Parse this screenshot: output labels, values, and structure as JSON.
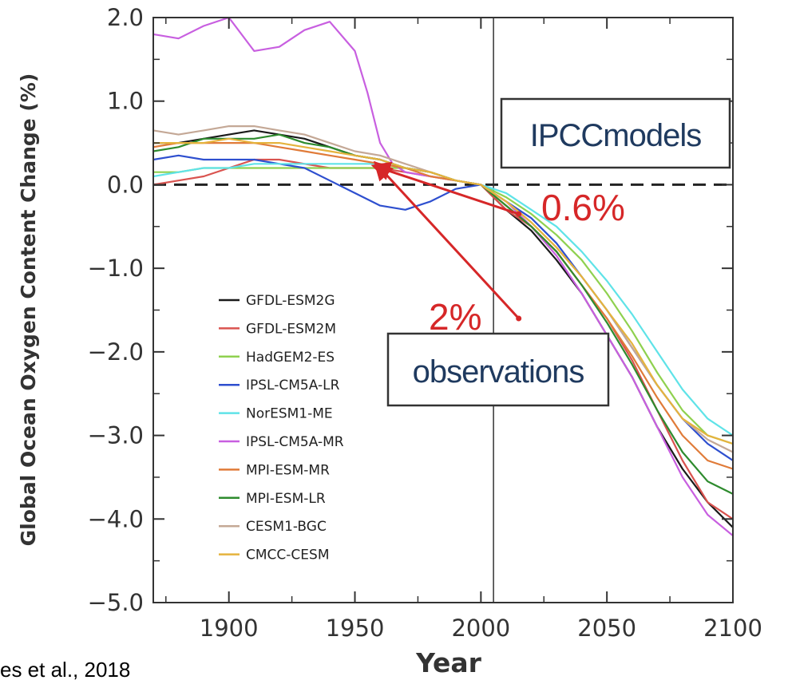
{
  "chart_data": {
    "type": "line",
    "xlabel": "Year",
    "ylabel": "Global Ocean Oxygen Content Change (%)",
    "xlim": [
      1870,
      2100
    ],
    "ylim": [
      -5.0,
      2.0
    ],
    "x_ticks": [
      1900,
      1950,
      2000,
      2050,
      2100
    ],
    "x_tick_labels": [
      "1900",
      "1950",
      "2000",
      "2050",
      "2100"
    ],
    "y_ticks": [
      2.0,
      1.0,
      0.0,
      -1.0,
      -2.0,
      -3.0,
      -4.0,
      -5.0
    ],
    "y_tick_labels": [
      "2.0",
      "1.0",
      "0.0",
      "−1.0",
      "−2.0",
      "−3.0",
      "−4.0",
      "−5.0"
    ],
    "reference_line_y": 0.0,
    "vertical_line_x": 2005,
    "legend_position": "bottom-left",
    "series": [
      {
        "name": "GFDL-ESM2G",
        "color": "#1a1a1a",
        "x": [
          1870,
          1880,
          1890,
          1900,
          1910,
          1920,
          1930,
          1940,
          1950,
          1960,
          1970,
          1980,
          1990,
          2000,
          2010,
          2020,
          2030,
          2040,
          2050,
          2060,
          2070,
          2080,
          2090,
          2100
        ],
        "y": [
          0.5,
          0.5,
          0.55,
          0.6,
          0.65,
          0.6,
          0.55,
          0.45,
          0.35,
          0.3,
          0.2,
          0.15,
          0.05,
          0.0,
          -0.3,
          -0.55,
          -0.9,
          -1.3,
          -1.8,
          -2.3,
          -2.9,
          -3.4,
          -3.8,
          -4.1
        ]
      },
      {
        "name": "GFDL-ESM2M",
        "color": "#d9534f",
        "x": [
          1870,
          1880,
          1890,
          1900,
          1910,
          1920,
          1930,
          1940,
          1950,
          1960,
          1970,
          1980,
          1990,
          2000,
          2010,
          2020,
          2030,
          2040,
          2050,
          2060,
          2070,
          2080,
          2090,
          2100
        ],
        "y": [
          0.0,
          0.05,
          0.1,
          0.2,
          0.3,
          0.3,
          0.25,
          0.2,
          0.2,
          0.2,
          0.15,
          0.1,
          0.05,
          0.0,
          -0.3,
          -0.5,
          -0.8,
          -1.2,
          -1.6,
          -2.1,
          -2.7,
          -3.3,
          -3.8,
          -4.0
        ]
      },
      {
        "name": "HadGEM2-ES",
        "color": "#8fd14f",
        "x": [
          1870,
          1880,
          1890,
          1900,
          1910,
          1920,
          1930,
          1940,
          1950,
          1960,
          1970,
          1980,
          1990,
          2000,
          2010,
          2020,
          2030,
          2040,
          2050,
          2060,
          2070,
          2080,
          2090,
          2100
        ],
        "y": [
          0.15,
          0.15,
          0.2,
          0.2,
          0.2,
          0.2,
          0.2,
          0.2,
          0.2,
          0.2,
          0.2,
          0.15,
          0.05,
          0.0,
          -0.15,
          -0.35,
          -0.6,
          -0.9,
          -1.3,
          -1.75,
          -2.25,
          -2.7,
          -3.0,
          -3.1
        ]
      },
      {
        "name": "IPSL-CM5A-LR",
        "color": "#2e4fcf",
        "x": [
          1870,
          1880,
          1890,
          1900,
          1910,
          1920,
          1930,
          1940,
          1950,
          1960,
          1970,
          1980,
          1990,
          2000,
          2010,
          2020,
          2030,
          2040,
          2050,
          2060,
          2070,
          2080,
          2090,
          2100
        ],
        "y": [
          0.3,
          0.35,
          0.3,
          0.3,
          0.3,
          0.25,
          0.2,
          0.05,
          -0.1,
          -0.25,
          -0.3,
          -0.2,
          -0.05,
          0.0,
          -0.2,
          -0.4,
          -0.7,
          -1.1,
          -1.5,
          -1.95,
          -2.4,
          -2.8,
          -3.1,
          -3.3
        ]
      },
      {
        "name": "NorESM1-ME",
        "color": "#5fe3e8",
        "x": [
          1870,
          1880,
          1890,
          1900,
          1910,
          1920,
          1930,
          1940,
          1950,
          1960,
          1970,
          1980,
          1990,
          2000,
          2010,
          2020,
          2030,
          2040,
          2050,
          2060,
          2070,
          2080,
          2090,
          2100
        ],
        "y": [
          0.1,
          0.15,
          0.2,
          0.2,
          0.25,
          0.25,
          0.25,
          0.25,
          0.25,
          0.25,
          0.2,
          0.15,
          0.05,
          0.0,
          -0.1,
          -0.3,
          -0.5,
          -0.8,
          -1.15,
          -1.55,
          -2.0,
          -2.45,
          -2.8,
          -3.0
        ]
      },
      {
        "name": "IPSL-CM5A-MR",
        "color": "#c85fe0",
        "x": [
          1870,
          1880,
          1890,
          1900,
          1910,
          1920,
          1930,
          1940,
          1950,
          1955,
          1960,
          1965,
          1970,
          1980,
          1990,
          2000,
          2010,
          2020,
          2030,
          2040,
          2050,
          2060,
          2070,
          2080,
          2090,
          2100
        ],
        "y": [
          1.8,
          1.75,
          1.9,
          2.0,
          1.6,
          1.65,
          1.85,
          1.95,
          1.6,
          1.1,
          0.5,
          0.25,
          0.15,
          0.1,
          0.05,
          0.0,
          -0.2,
          -0.5,
          -0.85,
          -1.3,
          -1.8,
          -2.3,
          -2.9,
          -3.5,
          -3.95,
          -4.2
        ]
      },
      {
        "name": "MPI-ESM-MR",
        "color": "#e07b39",
        "x": [
          1870,
          1880,
          1890,
          1900,
          1910,
          1920,
          1930,
          1940,
          1950,
          1960,
          1970,
          1980,
          1990,
          2000,
          2010,
          2020,
          2030,
          2040,
          2050,
          2060,
          2070,
          2080,
          2090,
          2100
        ],
        "y": [
          0.45,
          0.5,
          0.5,
          0.5,
          0.5,
          0.45,
          0.4,
          0.35,
          0.3,
          0.25,
          0.2,
          0.1,
          0.05,
          0.0,
          -0.25,
          -0.5,
          -0.8,
          -1.2,
          -1.6,
          -2.05,
          -2.55,
          -3.0,
          -3.3,
          -3.4
        ]
      },
      {
        "name": "MPI-ESM-LR",
        "color": "#2e8b2e",
        "x": [
          1870,
          1880,
          1890,
          1900,
          1910,
          1920,
          1930,
          1940,
          1950,
          1960,
          1970,
          1980,
          1990,
          2000,
          2010,
          2020,
          2030,
          2040,
          2050,
          2060,
          2070,
          2080,
          2090,
          2100
        ],
        "y": [
          0.4,
          0.45,
          0.55,
          0.55,
          0.55,
          0.6,
          0.5,
          0.45,
          0.35,
          0.3,
          0.2,
          0.15,
          0.05,
          0.0,
          -0.25,
          -0.5,
          -0.8,
          -1.2,
          -1.65,
          -2.15,
          -2.7,
          -3.2,
          -3.55,
          -3.7
        ]
      },
      {
        "name": "CESM1-BGC",
        "color": "#c4a896",
        "x": [
          1870,
          1880,
          1890,
          1900,
          1910,
          1920,
          1930,
          1940,
          1950,
          1960,
          1970,
          1980,
          1990,
          2000,
          2010,
          2020,
          2030,
          2040,
          2050,
          2060,
          2070,
          2080,
          2090,
          2100
        ],
        "y": [
          0.65,
          0.6,
          0.65,
          0.7,
          0.7,
          0.65,
          0.6,
          0.5,
          0.4,
          0.35,
          0.25,
          0.15,
          0.05,
          0.0,
          -0.2,
          -0.45,
          -0.75,
          -1.1,
          -1.5,
          -1.95,
          -2.4,
          -2.8,
          -3.05,
          -3.2
        ]
      },
      {
        "name": "CMCC-CESM",
        "color": "#e5b33d",
        "x": [
          1870,
          1880,
          1890,
          1900,
          1910,
          1920,
          1930,
          1940,
          1950,
          1960,
          1970,
          1980,
          1990,
          2000,
          2010,
          2020,
          2030,
          2040,
          2050,
          2060,
          2070,
          2080,
          2090,
          2100
        ],
        "y": [
          0.5,
          0.5,
          0.5,
          0.55,
          0.5,
          0.5,
          0.45,
          0.4,
          0.35,
          0.3,
          0.2,
          0.15,
          0.05,
          0.0,
          -0.2,
          -0.45,
          -0.75,
          -1.1,
          -1.5,
          -1.9,
          -2.4,
          -2.8,
          -3.0,
          -3.1
        ]
      }
    ],
    "annotations": {
      "ipcc_box": "IPCCmodels",
      "observations_box": "observations",
      "ipcc_value": "0.6%",
      "obs_value": "2%",
      "ipcc_arrow": {
        "from": [
          1960,
          0.2
        ],
        "to": [
          2015,
          -0.35
        ]
      },
      "obs_arrow": {
        "from": [
          1960,
          0.2
        ],
        "to": [
          2015,
          -1.6
        ]
      }
    }
  },
  "citation": "es et al., 2018",
  "colors": {
    "annotation_red": "#d62728",
    "box_text": "#1f3a5f"
  }
}
